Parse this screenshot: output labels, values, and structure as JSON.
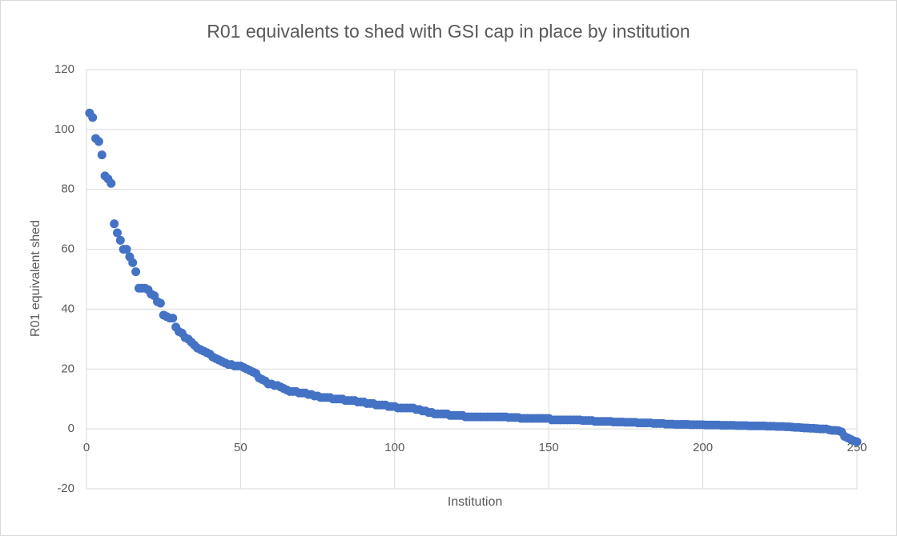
{
  "chart_data": {
    "type": "scatter",
    "title": "R01 equivalents to shed with GSI cap in place by institution",
    "xlabel": "Institution",
    "ylabel": "R01 equivalent shed",
    "color": "#4472c4",
    "grid": true,
    "xlim": [
      0,
      250
    ],
    "xticks": [
      0,
      50,
      100,
      150,
      200,
      250
    ],
    "ylim": [
      -20,
      120
    ],
    "yticks": [
      -20,
      0,
      20,
      40,
      60,
      80,
      100,
      120
    ],
    "x": [
      1,
      2,
      3,
      4,
      5,
      6,
      7,
      8,
      9,
      10,
      11,
      12,
      13,
      14,
      15,
      16,
      17,
      18,
      19,
      20,
      21,
      22,
      23,
      24,
      25,
      26,
      27,
      28,
      29,
      30,
      31,
      32,
      33,
      34,
      35,
      36,
      37,
      38,
      39,
      40,
      41,
      42,
      43,
      44,
      45,
      46,
      47,
      48,
      49,
      50,
      51,
      52,
      53,
      54,
      55,
      56,
      57,
      58,
      59,
      60,
      61,
      62,
      63,
      64,
      65,
      66,
      67,
      68,
      69,
      70,
      71,
      72,
      73,
      74,
      75,
      76,
      77,
      78,
      79,
      80,
      81,
      82,
      83,
      84,
      85,
      86,
      87,
      88,
      89,
      90,
      91,
      92,
      93,
      94,
      95,
      96,
      97,
      98,
      99,
      100,
      101,
      102,
      103,
      104,
      105,
      106,
      107,
      108,
      109,
      110,
      111,
      112,
      113,
      114,
      115,
      116,
      117,
      118,
      119,
      120,
      121,
      122,
      123,
      124,
      125,
      126,
      127,
      128,
      129,
      130,
      131,
      132,
      133,
      134,
      135,
      136,
      137,
      138,
      139,
      140,
      141,
      142,
      143,
      144,
      145,
      146,
      147,
      148,
      149,
      150,
      151,
      152,
      153,
      154,
      155,
      156,
      157,
      158,
      159,
      160,
      161,
      162,
      163,
      164,
      165,
      166,
      167,
      168,
      169,
      170,
      171,
      172,
      173,
      174,
      175,
      176,
      177,
      178,
      179,
      180,
      181,
      182,
      183,
      184,
      185,
      186,
      187,
      188,
      189,
      190,
      191,
      192,
      193,
      194,
      195,
      196,
      197,
      198,
      199,
      200,
      201,
      202,
      203,
      204,
      205,
      206,
      207,
      208,
      209,
      210,
      211,
      212,
      213,
      214,
      215,
      216,
      217,
      218,
      219,
      220,
      221,
      222,
      223,
      224,
      225,
      226,
      227,
      228,
      229,
      230,
      231,
      232,
      233,
      234,
      235,
      236,
      237,
      238,
      239,
      240,
      241,
      242,
      243,
      244,
      245,
      246,
      247,
      248,
      249,
      250
    ],
    "values": [
      105.5,
      104,
      97,
      96,
      91.5,
      84.5,
      83.5,
      82,
      68.5,
      65.5,
      63,
      60,
      60,
      57.5,
      55.5,
      52.5,
      47,
      47,
      47,
      46.5,
      45,
      44.5,
      42.5,
      42,
      38,
      37.5,
      37,
      37,
      34,
      32.5,
      32,
      30.5,
      30,
      29,
      28,
      27,
      26.5,
      26,
      25.5,
      25,
      24,
      23.5,
      23,
      22.5,
      22,
      21.5,
      21.5,
      21,
      21,
      21,
      20.5,
      20,
      19.5,
      19,
      18.5,
      17,
      16.5,
      16,
      15,
      15,
      14.5,
      14.5,
      14,
      13.5,
      13,
      12.5,
      12.5,
      12.5,
      12,
      12,
      12,
      11.5,
      11.5,
      11,
      11,
      10.5,
      10.5,
      10.5,
      10.5,
      10,
      10,
      10,
      10,
      9.5,
      9.5,
      9.5,
      9.5,
      9,
      9,
      9,
      8.5,
      8.5,
      8.5,
      8,
      8,
      8,
      8,
      7.5,
      7.5,
      7.5,
      7,
      7,
      7,
      7,
      7,
      7,
      6.5,
      6.5,
      6,
      6,
      5.5,
      5.5,
      5,
      5,
      5,
      5,
      5,
      4.5,
      4.5,
      4.5,
      4.5,
      4.5,
      4,
      4,
      4,
      4,
      4,
      4,
      4,
      4,
      4,
      4,
      4,
      4,
      4,
      4,
      3.8,
      3.8,
      3.8,
      3.8,
      3.5,
      3.5,
      3.5,
      3.5,
      3.5,
      3.5,
      3.5,
      3.5,
      3.5,
      3.5,
      3,
      3,
      3,
      3,
      3,
      3,
      3,
      3,
      3,
      3,
      2.8,
      2.8,
      2.8,
      2.8,
      2.5,
      2.5,
      2.5,
      2.5,
      2.5,
      2.5,
      2.3,
      2.3,
      2.3,
      2.3,
      2.2,
      2.2,
      2.2,
      2.2,
      2,
      2,
      2,
      2,
      2,
      1.8,
      1.8,
      1.8,
      1.8,
      1.6,
      1.6,
      1.6,
      1.5,
      1.5,
      1.5,
      1.5,
      1.5,
      1.4,
      1.4,
      1.4,
      1.4,
      1.4,
      1.3,
      1.3,
      1.3,
      1.3,
      1.3,
      1.2,
      1.2,
      1.2,
      1.2,
      1.2,
      1.1,
      1.1,
      1.1,
      1.1,
      1,
      1,
      1,
      1,
      1,
      1,
      0.9,
      0.9,
      0.9,
      0.8,
      0.8,
      0.8,
      0.7,
      0.7,
      0.6,
      0.5,
      0.5,
      0.4,
      0.3,
      0.3,
      0.2,
      0.2,
      0.1,
      0,
      0,
      0,
      -0.3,
      -0.5,
      -0.5,
      -0.6,
      -1,
      -2.5,
      -3,
      -3.5,
      -4,
      -4.3
    ]
  }
}
